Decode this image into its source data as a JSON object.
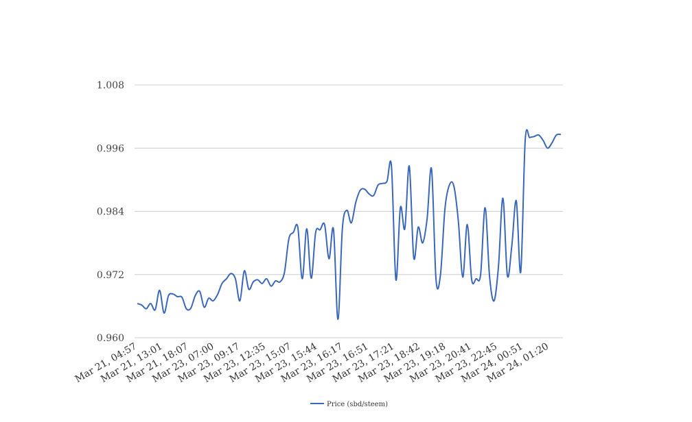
{
  "chart_data": {
    "type": "line",
    "title": "",
    "xlabel": "",
    "ylabel": "",
    "ylim": [
      0.96,
      1.008
    ],
    "grid": "horizontal",
    "legend_position": "bottom",
    "x_tick_labels": [
      "Mar 21, 04:57",
      "Mar 21, 13:01",
      "Mar 21, 18:07",
      "Mar 23, 07:00",
      "Mar 23, 09:17",
      "Mar 23, 12:35",
      "Mar 23, 15:07",
      "Mar 23, 15:44",
      "Mar 23, 16:17",
      "Mar 23, 16:51",
      "Mar 23, 17:21",
      "Mar 23, 18:42",
      "Mar 23, 19:18",
      "Mar 23, 20:41",
      "Mar 23, 22:45",
      "Mar 24, 00:51",
      "Mar 24, 01:20"
    ],
    "y_tick_labels": [
      "0.960",
      "0.972",
      "0.984",
      "0.996",
      "1.008"
    ],
    "y_ticks": [
      0.96,
      0.972,
      0.984,
      0.996,
      1.008
    ],
    "series": [
      {
        "name": "Price (sbd/steem)",
        "color": "#3a66b8",
        "values": [
          0.9665,
          0.9662,
          0.9655,
          0.9665,
          0.9653,
          0.969,
          0.9647,
          0.968,
          0.9683,
          0.9678,
          0.9677,
          0.9655,
          0.9656,
          0.968,
          0.9688,
          0.9658,
          0.9675,
          0.967,
          0.9682,
          0.9703,
          0.9712,
          0.9722,
          0.9712,
          0.967,
          0.9727,
          0.9692,
          0.9706,
          0.971,
          0.9703,
          0.9712,
          0.9698,
          0.9708,
          0.9706,
          0.9724,
          0.9788,
          0.98,
          0.981,
          0.9712,
          0.9807,
          0.9713,
          0.98,
          0.9805,
          0.9815,
          0.975,
          0.9806,
          0.9635,
          0.9808,
          0.9842,
          0.9818,
          0.9857,
          0.988,
          0.9882,
          0.9873,
          0.987,
          0.989,
          0.9893,
          0.9897,
          0.9926,
          0.971,
          0.9847,
          0.9807,
          0.9926,
          0.9752,
          0.981,
          0.978,
          0.9826,
          0.992,
          0.971,
          0.972,
          0.9845,
          0.989,
          0.9888,
          0.9822,
          0.9715,
          0.9815,
          0.971,
          0.9712,
          0.972,
          0.9847,
          0.9717,
          0.967,
          0.9735,
          0.9865,
          0.9718,
          0.9775,
          0.986,
          0.9725,
          0.9975,
          0.998,
          0.9982,
          0.9985,
          0.9975,
          0.996,
          0.997,
          0.9985,
          0.9986
        ]
      }
    ]
  }
}
